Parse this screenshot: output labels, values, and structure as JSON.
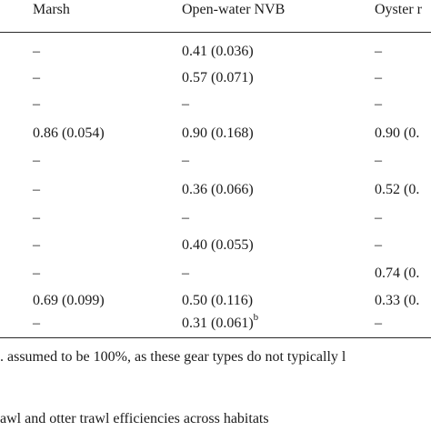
{
  "table": {
    "columns": [
      "Marsh",
      "Open-water NVB",
      "Oyster r"
    ],
    "rows": [
      [
        "–",
        "0.41 (0.036)",
        "–"
      ],
      [
        "–",
        "0.57 (0.071)",
        "–"
      ],
      [
        "–",
        "–",
        "–"
      ],
      [
        "0.86 (0.054)",
        "0.90 (0.168)",
        "0.90 (0."
      ],
      [
        "–",
        "–",
        "–"
      ],
      [
        "–",
        "0.36 (0.066)",
        "0.52 (0."
      ],
      [
        "–",
        "–",
        "–"
      ],
      [
        "–",
        "0.40 (0.055)",
        "–"
      ],
      [
        "–",
        "–",
        "0.74 (0."
      ],
      [
        "0.69 (0.099)",
        "0.50 (0.116)",
        "0.33 (0."
      ],
      [
        "–",
        "0.31 (0.061)",
        "–"
      ]
    ],
    "row_11_col_2_superscript": "b"
  },
  "footnotes": {
    "line1": ". assumed to be 100%, as these gear types do not typically l",
    "line2": "awl and otter trawl efficiencies across habitats"
  }
}
